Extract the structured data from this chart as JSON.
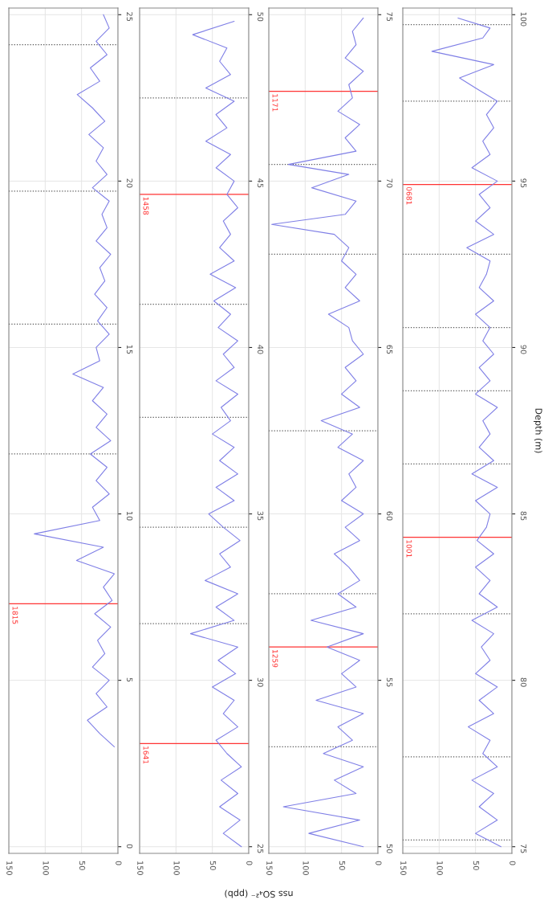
{
  "chart_data": [
    {
      "type": "line",
      "series": [
        {
          "color": "#7f7fe6",
          "x": [
            5,
            25,
            42,
            15,
            30,
            12,
            35,
            18,
            28,
            10,
            32,
            8,
            20,
            5,
            57,
            20,
            115,
            25,
            35,
            12,
            30,
            15,
            38,
            10,
            30,
            15,
            35,
            20,
            62,
            25,
            30,
            12,
            28,
            15,
            32,
            18,
            25,
            10,
            30,
            15,
            22,
            12,
            35,
            15,
            30,
            20,
            40,
            18,
            35,
            56,
            25,
            38,
            15,
            30,
            12,
            20
          ],
          "values": [
            3.0,
            3.4,
            3.8,
            4.2,
            4.6,
            5.0,
            5.4,
            5.8,
            6.2,
            6.6,
            7.0,
            7.4,
            7.8,
            8.2,
            8.6,
            9.0,
            9.4,
            9.8,
            10.2,
            10.6,
            11.0,
            11.4,
            11.8,
            12.2,
            12.6,
            13.0,
            13.4,
            13.8,
            14.2,
            14.6,
            15.0,
            15.4,
            15.8,
            16.2,
            16.6,
            17.0,
            17.4,
            17.8,
            18.2,
            18.6,
            19.0,
            19.4,
            19.8,
            20.2,
            20.6,
            21.0,
            21.4,
            21.8,
            22.2,
            22.6,
            23.0,
            23.4,
            23.8,
            24.2,
            24.6,
            25.0
          ]
        }
      ],
      "ylim": [
        -0.2,
        25.2
      ],
      "yticks": [
        0,
        5,
        10,
        15,
        20,
        25
      ],
      "xlim": [
        150,
        0
      ],
      "xticks": [
        0,
        50,
        100,
        150
      ],
      "grid": true,
      "annotations": [
        {
          "text": "1815",
          "y": 7.3
        }
      ],
      "ref_lines": [
        {
          "axis": "y",
          "value": 7.3,
          "color": "#ff3333"
        },
        {
          "axis": "y",
          "value": 11.8,
          "color": "#555555",
          "line_style": "dotted"
        },
        {
          "axis": "y",
          "value": 15.7,
          "color": "#555555",
          "line_style": "dotted"
        },
        {
          "axis": "y",
          "value": 19.7,
          "color": "#555555",
          "line_style": "dotted"
        },
        {
          "axis": "y",
          "value": 24.1,
          "color": "#555555",
          "line_style": "dotted"
        }
      ]
    },
    {
      "type": "line",
      "series": [
        {
          "color": "#7f7fe6",
          "x": [
            10,
            35,
            12,
            40,
            15,
            38,
            10,
            30,
            45,
            15,
            35,
            20,
            50,
            18,
            42,
            15,
            80,
            20,
            45,
            15,
            60,
            25,
            40,
            12,
            35,
            55,
            20,
            45,
            15,
            40,
            20,
            50,
            25,
            38,
            15,
            45,
            20,
            35,
            15,
            42,
            25,
            48,
            18,
            53,
            20,
            40,
            25,
            35,
            15,
            30,
            20,
            45,
            25,
            59,
            30,
            45,
            20,
            59,
            25,
            40,
            30,
            77,
            20
          ],
          "values": [
            25.0,
            25.4,
            25.8,
            26.2,
            26.6,
            27.0,
            27.4,
            27.8,
            28.2,
            28.6,
            29.0,
            29.4,
            29.8,
            30.2,
            30.6,
            31.0,
            31.4,
            31.8,
            32.2,
            32.6,
            33.0,
            33.4,
            33.8,
            34.2,
            34.6,
            35.0,
            35.4,
            35.8,
            36.2,
            36.6,
            37.0,
            37.4,
            37.8,
            38.2,
            38.6,
            39.0,
            39.4,
            39.8,
            40.2,
            40.6,
            41.0,
            41.4,
            41.8,
            42.2,
            42.6,
            43.0,
            43.4,
            43.8,
            44.2,
            44.6,
            45.0,
            45.4,
            45.8,
            46.2,
            46.6,
            47.0,
            47.4,
            47.8,
            48.2,
            48.6,
            49.0,
            49.4,
            49.8
          ]
        }
      ],
      "ylim": [
        24.8,
        50.2
      ],
      "yticks": [
        25,
        30,
        35,
        40,
        45,
        50
      ],
      "xlim": [
        150,
        0
      ],
      "xticks": [
        0,
        50,
        100,
        150
      ],
      "grid": true,
      "xlabel": "nss SO₄²⁻ (ppb)",
      "annotations": [
        {
          "text": "1641",
          "y": 28.1
        },
        {
          "text": "1458",
          "y": 44.6
        }
      ],
      "ref_lines": [
        {
          "axis": "y",
          "value": 28.1,
          "color": "#ff3333"
        },
        {
          "axis": "y",
          "value": 44.6,
          "color": "#ff3333"
        },
        {
          "axis": "y",
          "value": 31.7,
          "color": "#555555",
          "line_style": "dotted"
        },
        {
          "axis": "y",
          "value": 34.6,
          "color": "#555555",
          "line_style": "dotted"
        },
        {
          "axis": "y",
          "value": 37.9,
          "color": "#555555",
          "line_style": "dotted"
        },
        {
          "axis": "y",
          "value": 41.3,
          "color": "#555555",
          "line_style": "dotted"
        },
        {
          "axis": "y",
          "value": 47.5,
          "color": "#555555",
          "line_style": "dotted"
        }
      ]
    },
    {
      "type": "line",
      "series": [
        {
          "color": "#7f7fe6",
          "x": [
            20,
            95,
            25,
            130,
            30,
            60,
            20,
            75,
            35,
            55,
            20,
            85,
            30,
            50,
            25,
            70,
            20,
            92,
            30,
            55,
            25,
            40,
            60,
            25,
            45,
            20,
            50,
            30,
            40,
            20,
            55,
            35,
            78,
            25,
            50,
            30,
            45,
            20,
            35,
            40,
            68,
            25,
            45,
            30,
            50,
            40,
            60,
            146,
            45,
            30,
            91,
            40,
            123,
            30,
            45,
            25,
            55,
            35,
            40,
            20,
            45,
            30,
            35,
            20
          ],
          "values": [
            50.0,
            50.4,
            50.8,
            51.2,
            51.6,
            52.0,
            52.4,
            52.8,
            53.2,
            53.6,
            54.0,
            54.4,
            54.8,
            55.2,
            55.6,
            56.0,
            56.4,
            56.8,
            57.2,
            57.6,
            58.0,
            58.4,
            58.8,
            59.2,
            59.6,
            60.0,
            60.4,
            60.8,
            61.2,
            61.6,
            62.0,
            62.4,
            62.8,
            63.2,
            63.6,
            64.0,
            64.4,
            64.8,
            65.2,
            65.6,
            66.0,
            66.4,
            66.8,
            67.2,
            67.6,
            68.0,
            68.4,
            68.7,
            69.0,
            69.4,
            69.8,
            70.2,
            70.5,
            70.9,
            71.3,
            71.7,
            72.1,
            72.5,
            72.9,
            73.3,
            73.7,
            74.1,
            74.5,
            74.9
          ]
        }
      ],
      "ylim": [
        49.8,
        75.2
      ],
      "yticks": [
        50,
        55,
        60,
        65,
        70,
        75
      ],
      "xlim": [
        150,
        0
      ],
      "xticks": [
        0,
        50,
        100,
        150
      ],
      "grid": true,
      "annotations": [
        {
          "text": "1259",
          "y": 56.0
        },
        {
          "text": "1171",
          "y": 72.7
        }
      ],
      "ref_lines": [
        {
          "axis": "y",
          "value": 56.0,
          "color": "#ff3333"
        },
        {
          "axis": "y",
          "value": 72.7,
          "color": "#ff3333"
        },
        {
          "axis": "y",
          "value": 53.0,
          "color": "#555555",
          "line_style": "dotted"
        },
        {
          "axis": "y",
          "value": 57.6,
          "color": "#555555",
          "line_style": "dotted"
        },
        {
          "axis": "y",
          "value": 62.5,
          "color": "#555555",
          "line_style": "dotted"
        },
        {
          "axis": "y",
          "value": 67.8,
          "color": "#555555",
          "line_style": "dotted"
        },
        {
          "axis": "y",
          "value": 70.5,
          "color": "#555555",
          "line_style": "dotted"
        }
      ]
    },
    {
      "type": "line",
      "series": [
        {
          "color": "#7f7fe6",
          "x": [
            15,
            50,
            20,
            45,
            25,
            55,
            20,
            40,
            30,
            60,
            25,
            45,
            20,
            50,
            30,
            42,
            25,
            55,
            20,
            45,
            30,
            50,
            25,
            48,
            35,
            30,
            50,
            20,
            55,
            25,
            45,
            30,
            40,
            20,
            50,
            30,
            45,
            25,
            40,
            30,
            50,
            25,
            45,
            35,
            30,
            62,
            25,
            50,
            30,
            45,
            20,
            55,
            30,
            40,
            25,
            35,
            20,
            50,
            72,
            25,
            110,
            40,
            30,
            74
          ],
          "values": [
            75.0,
            75.4,
            75.8,
            76.2,
            76.6,
            77.0,
            77.4,
            77.8,
            78.2,
            78.6,
            79.0,
            79.4,
            79.8,
            80.2,
            80.6,
            81.0,
            81.4,
            81.8,
            82.2,
            82.6,
            83.0,
            83.4,
            83.8,
            84.2,
            84.6,
            85.0,
            85.4,
            85.8,
            86.2,
            86.6,
            87.0,
            87.4,
            87.8,
            88.2,
            88.6,
            89.0,
            89.4,
            89.8,
            90.2,
            90.6,
            91.0,
            91.4,
            91.8,
            92.2,
            92.6,
            93.0,
            93.4,
            93.8,
            94.2,
            94.6,
            95.0,
            95.4,
            95.8,
            96.2,
            96.6,
            97.0,
            97.4,
            97.8,
            98.1,
            98.5,
            98.9,
            99.3,
            99.6,
            99.9
          ]
        }
      ],
      "ylim": [
        74.8,
        100.2
      ],
      "yticks": [
        75,
        80,
        85,
        90,
        95,
        100
      ],
      "xlim": [
        150,
        0
      ],
      "xticks": [
        0,
        50,
        100,
        150
      ],
      "grid": true,
      "ylabel": "Depth (m)",
      "annotations": [
        {
          "text": "1001",
          "y": 84.3
        },
        {
          "text": "0681",
          "y": 94.9
        }
      ],
      "ref_lines": [
        {
          "axis": "y",
          "value": 84.3,
          "color": "#ff3333"
        },
        {
          "axis": "y",
          "value": 94.9,
          "color": "#ff3333"
        },
        {
          "axis": "y",
          "value": 75.2,
          "color": "#555555",
          "line_style": "dotted"
        },
        {
          "axis": "y",
          "value": 77.7,
          "color": "#555555",
          "line_style": "dotted"
        },
        {
          "axis": "y",
          "value": 82.0,
          "color": "#555555",
          "line_style": "dotted"
        },
        {
          "axis": "y",
          "value": 86.5,
          "color": "#555555",
          "line_style": "dotted"
        },
        {
          "axis": "y",
          "value": 88.7,
          "color": "#555555",
          "line_style": "dotted"
        },
        {
          "axis": "y",
          "value": 90.6,
          "color": "#555555",
          "line_style": "dotted"
        },
        {
          "axis": "y",
          "value": 92.8,
          "color": "#555555",
          "line_style": "dotted"
        },
        {
          "axis": "y",
          "value": 97.4,
          "color": "#555555",
          "line_style": "dotted"
        },
        {
          "axis": "y",
          "value": 99.7,
          "color": "#555555",
          "line_style": "dotted"
        }
      ]
    }
  ]
}
